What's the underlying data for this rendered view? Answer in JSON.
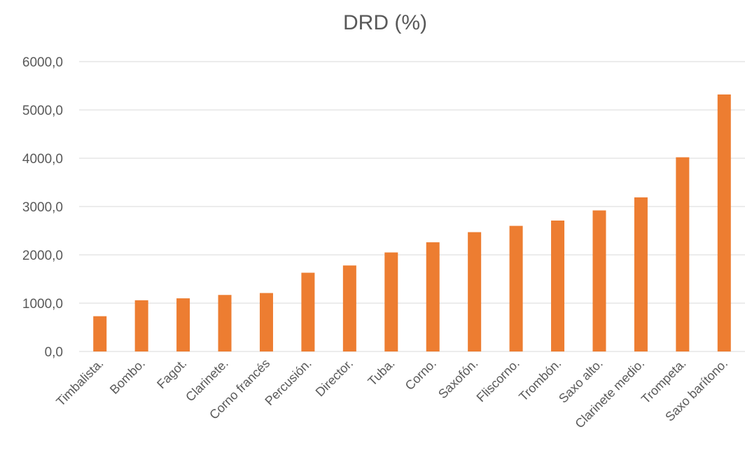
{
  "chart_data": {
    "type": "bar",
    "title": "DRD (%)",
    "xlabel": "",
    "ylabel": "",
    "ylim": [
      0,
      6000
    ],
    "yticks": [
      "0,0",
      "1000,0",
      "2000,0",
      "3000,0",
      "4000,0",
      "5000,0",
      "6000,0"
    ],
    "grid": true,
    "legend": "none",
    "bar_color": "#ED7D31",
    "categories": [
      "Timbalista.",
      "Bombo.",
      "Fagot.",
      "Clarinete.",
      "Corno francés",
      "Percusión.",
      "Director.",
      "Tuba.",
      "Corno.",
      "Saxofón.",
      "Fliscorno.",
      "Trombón.",
      "Saxo alto.",
      "Clarinete medio.",
      "Trompeta.",
      "Saxo barítono."
    ],
    "values": [
      730,
      1060,
      1100,
      1170,
      1210,
      1630,
      1780,
      2050,
      2260,
      2470,
      2600,
      2710,
      2920,
      3190,
      4020,
      5320
    ]
  }
}
